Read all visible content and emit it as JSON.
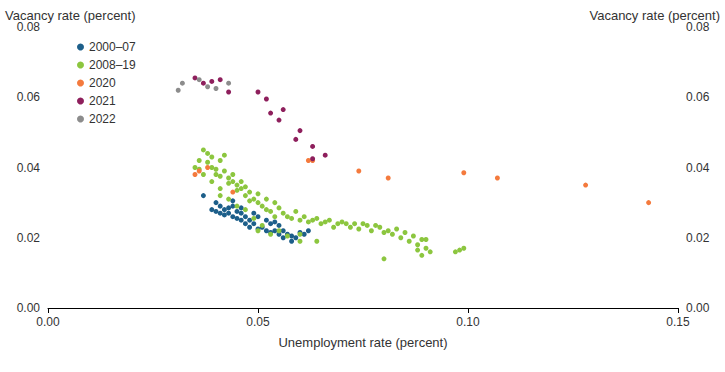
{
  "chart_data": {
    "type": "scatter",
    "xlabel": "Unemployment rate (percent)",
    "ylabel": "Vacancy rate (percent)",
    "y2label": "Vacancy rate (percent)",
    "xlim": [
      0,
      0.15
    ],
    "xticks": [
      {
        "value": 0,
        "label": "0.00"
      },
      0.05,
      {
        "value": 0.1,
        "label": "0.10"
      },
      0.15
    ],
    "ylim": [
      0,
      0.08
    ],
    "yticks": [
      {
        "value": 0,
        "label": "0.00"
      },
      0.02,
      0.04,
      0.06,
      0.08
    ],
    "y2lim": [
      0,
      0.08
    ],
    "y2ticks": [
      {
        "value": 0,
        "label": "0.00"
      },
      0.02,
      0.04,
      0.06,
      0.08
    ],
    "grid": false,
    "legend": "upper left",
    "marker": "circle",
    "series": [
      {
        "name": "2000–07",
        "color": "#1d5f8a",
        "x": [
          0.039,
          0.04,
          0.041,
          0.041,
          0.042,
          0.042,
          0.043,
          0.043,
          0.044,
          0.044,
          0.045,
          0.045,
          0.046,
          0.046,
          0.047,
          0.047,
          0.048,
          0.048,
          0.049,
          0.05,
          0.05,
          0.051,
          0.052,
          0.052,
          0.053,
          0.054,
          0.055,
          0.055,
          0.056,
          0.057,
          0.058,
          0.058,
          0.059,
          0.06,
          0.061,
          0.062,
          0.044,
          0.046,
          0.049,
          0.053,
          0.037,
          0.04,
          0.054,
          0.056
        ],
        "values": [
          0.028,
          0.0275,
          0.029,
          0.027,
          0.028,
          0.0265,
          0.0285,
          0.027,
          0.029,
          0.026,
          0.0275,
          0.0255,
          0.027,
          0.025,
          0.026,
          0.024,
          0.025,
          0.023,
          0.024,
          0.0225,
          0.026,
          0.023,
          0.022,
          0.025,
          0.0215,
          0.022,
          0.021,
          0.0235,
          0.02,
          0.021,
          0.019,
          0.0205,
          0.02,
          0.0215,
          0.021,
          0.022,
          0.0305,
          0.0285,
          0.027,
          0.024,
          0.032,
          0.03,
          0.0245,
          0.022
        ]
      },
      {
        "name": "2008–19",
        "color": "#8cc63f",
        "x": [
          0.035,
          0.036,
          0.036,
          0.037,
          0.038,
          0.038,
          0.039,
          0.039,
          0.04,
          0.04,
          0.041,
          0.041,
          0.042,
          0.042,
          0.043,
          0.043,
          0.044,
          0.044,
          0.045,
          0.045,
          0.046,
          0.046,
          0.047,
          0.047,
          0.048,
          0.048,
          0.049,
          0.05,
          0.05,
          0.051,
          0.052,
          0.052,
          0.053,
          0.054,
          0.054,
          0.055,
          0.056,
          0.057,
          0.058,
          0.059,
          0.06,
          0.061,
          0.062,
          0.063,
          0.064,
          0.065,
          0.066,
          0.067,
          0.068,
          0.069,
          0.07,
          0.071,
          0.072,
          0.073,
          0.074,
          0.075,
          0.076,
          0.077,
          0.078,
          0.079,
          0.08,
          0.08,
          0.081,
          0.082,
          0.083,
          0.084,
          0.085,
          0.086,
          0.087,
          0.088,
          0.088,
          0.089,
          0.089,
          0.09,
          0.09,
          0.091,
          0.097,
          0.098,
          0.099,
          0.041,
          0.043,
          0.045,
          0.047,
          0.05,
          0.051,
          0.053,
          0.055,
          0.057,
          0.06,
          0.049,
          0.037,
          0.039,
          0.041,
          0.06,
          0.064
        ],
        "values": [
          0.04,
          0.0395,
          0.042,
          0.045,
          0.044,
          0.0415,
          0.043,
          0.04,
          0.0395,
          0.038,
          0.042,
          0.0375,
          0.0435,
          0.039,
          0.037,
          0.0355,
          0.038,
          0.036,
          0.035,
          0.0335,
          0.036,
          0.034,
          0.0345,
          0.032,
          0.033,
          0.0305,
          0.031,
          0.03,
          0.0325,
          0.029,
          0.031,
          0.028,
          0.0275,
          0.03,
          0.026,
          0.0285,
          0.027,
          0.026,
          0.0255,
          0.0275,
          0.025,
          0.026,
          0.0245,
          0.025,
          0.0255,
          0.024,
          0.0245,
          0.025,
          0.023,
          0.024,
          0.0245,
          0.024,
          0.023,
          0.024,
          0.0225,
          0.024,
          0.0235,
          0.022,
          0.0235,
          0.023,
          0.0215,
          0.014,
          0.022,
          0.021,
          0.0225,
          0.02,
          0.0215,
          0.019,
          0.0205,
          0.018,
          0.0165,
          0.0195,
          0.015,
          0.017,
          0.0195,
          0.016,
          0.016,
          0.0165,
          0.017,
          0.032,
          0.031,
          0.029,
          0.028,
          0.022,
          0.0235,
          0.021,
          0.022,
          0.0205,
          0.021,
          0.0255,
          0.038,
          0.036,
          0.034,
          0.019,
          0.019
        ]
      },
      {
        "name": "2020",
        "color": "#f47a3d",
        "x": [
          0.035,
          0.036,
          0.038,
          0.044,
          0.062,
          0.063,
          0.074,
          0.081,
          0.099,
          0.107,
          0.128,
          0.143
        ],
        "values": [
          0.038,
          0.039,
          0.04,
          0.033,
          0.042,
          0.042,
          0.039,
          0.037,
          0.0385,
          0.037,
          0.035,
          0.03
        ]
      },
      {
        "name": "2021",
        "color": "#8e1f5c",
        "x": [
          0.035,
          0.037,
          0.039,
          0.041,
          0.043,
          0.05,
          0.052,
          0.053,
          0.055,
          0.056,
          0.059,
          0.06,
          0.063,
          0.063,
          0.066
        ],
        "values": [
          0.0655,
          0.064,
          0.0645,
          0.065,
          0.0615,
          0.0615,
          0.0595,
          0.0555,
          0.0535,
          0.0565,
          0.048,
          0.0505,
          0.046,
          0.0425,
          0.0435
        ]
      },
      {
        "name": "2022",
        "color": "#8c8c8c",
        "x": [
          0.031,
          0.032,
          0.036,
          0.038,
          0.04,
          0.043
        ],
        "values": [
          0.062,
          0.064,
          0.065,
          0.063,
          0.0625,
          0.064
        ]
      }
    ]
  }
}
